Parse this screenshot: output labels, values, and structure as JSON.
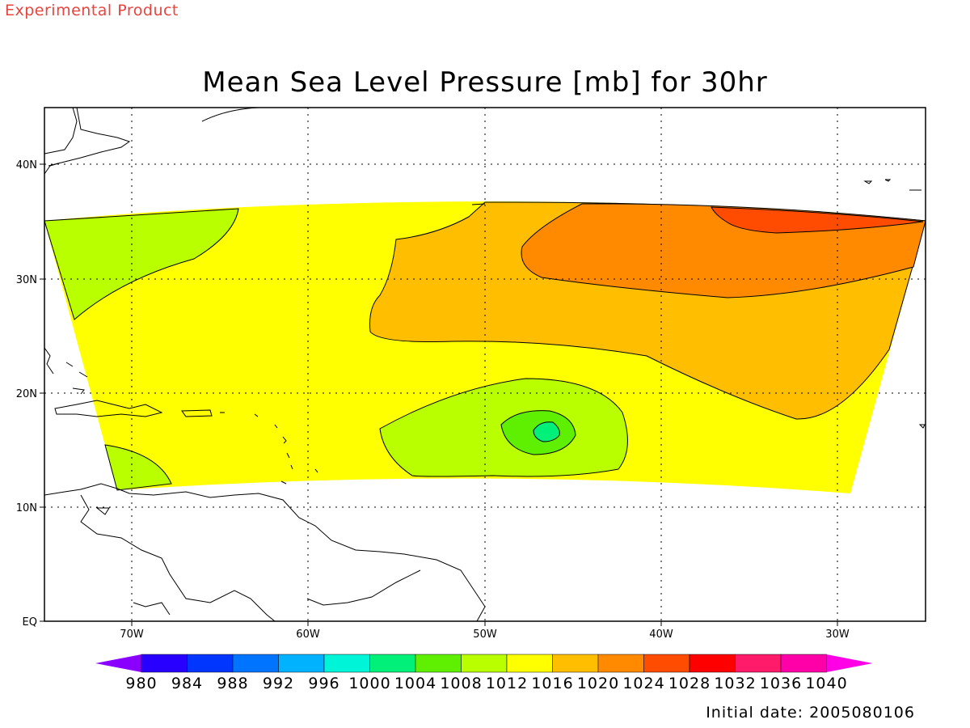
{
  "header": {
    "watermark": "Experimental Product",
    "title": "Mean Sea Level Pressure [mb] for 30hr"
  },
  "footer": {
    "initial_date": "Initial date: 2005080106"
  },
  "map": {
    "lon_labels": [
      "70W",
      "60W",
      "50W",
      "40W",
      "30W"
    ],
    "lat_labels": [
      "40N",
      "30N",
      "20N",
      "10N",
      "EQ"
    ]
  },
  "colorbar": {
    "labels": [
      "980",
      "984",
      "988",
      "992",
      "996",
      "1000",
      "1004",
      "1008",
      "1012",
      "1016",
      "1020",
      "1024",
      "1028",
      "1032",
      "1036",
      "1040"
    ],
    "colors": [
      "#8a00ff",
      "#2800ff",
      "#0036ff",
      "#0074ff",
      "#00b2ff",
      "#00f5d8",
      "#00f07a",
      "#5ef000",
      "#b9ff00",
      "#ffff00",
      "#ffbe00",
      "#ff8a00",
      "#ff4c00",
      "#ff0000",
      "#ff1a6a",
      "#ff00a8",
      "#ff00e6"
    ]
  },
  "fields": {
    "band_color": "#ffff00",
    "contour_color": "#000000",
    "coast_color": "#000000"
  }
}
